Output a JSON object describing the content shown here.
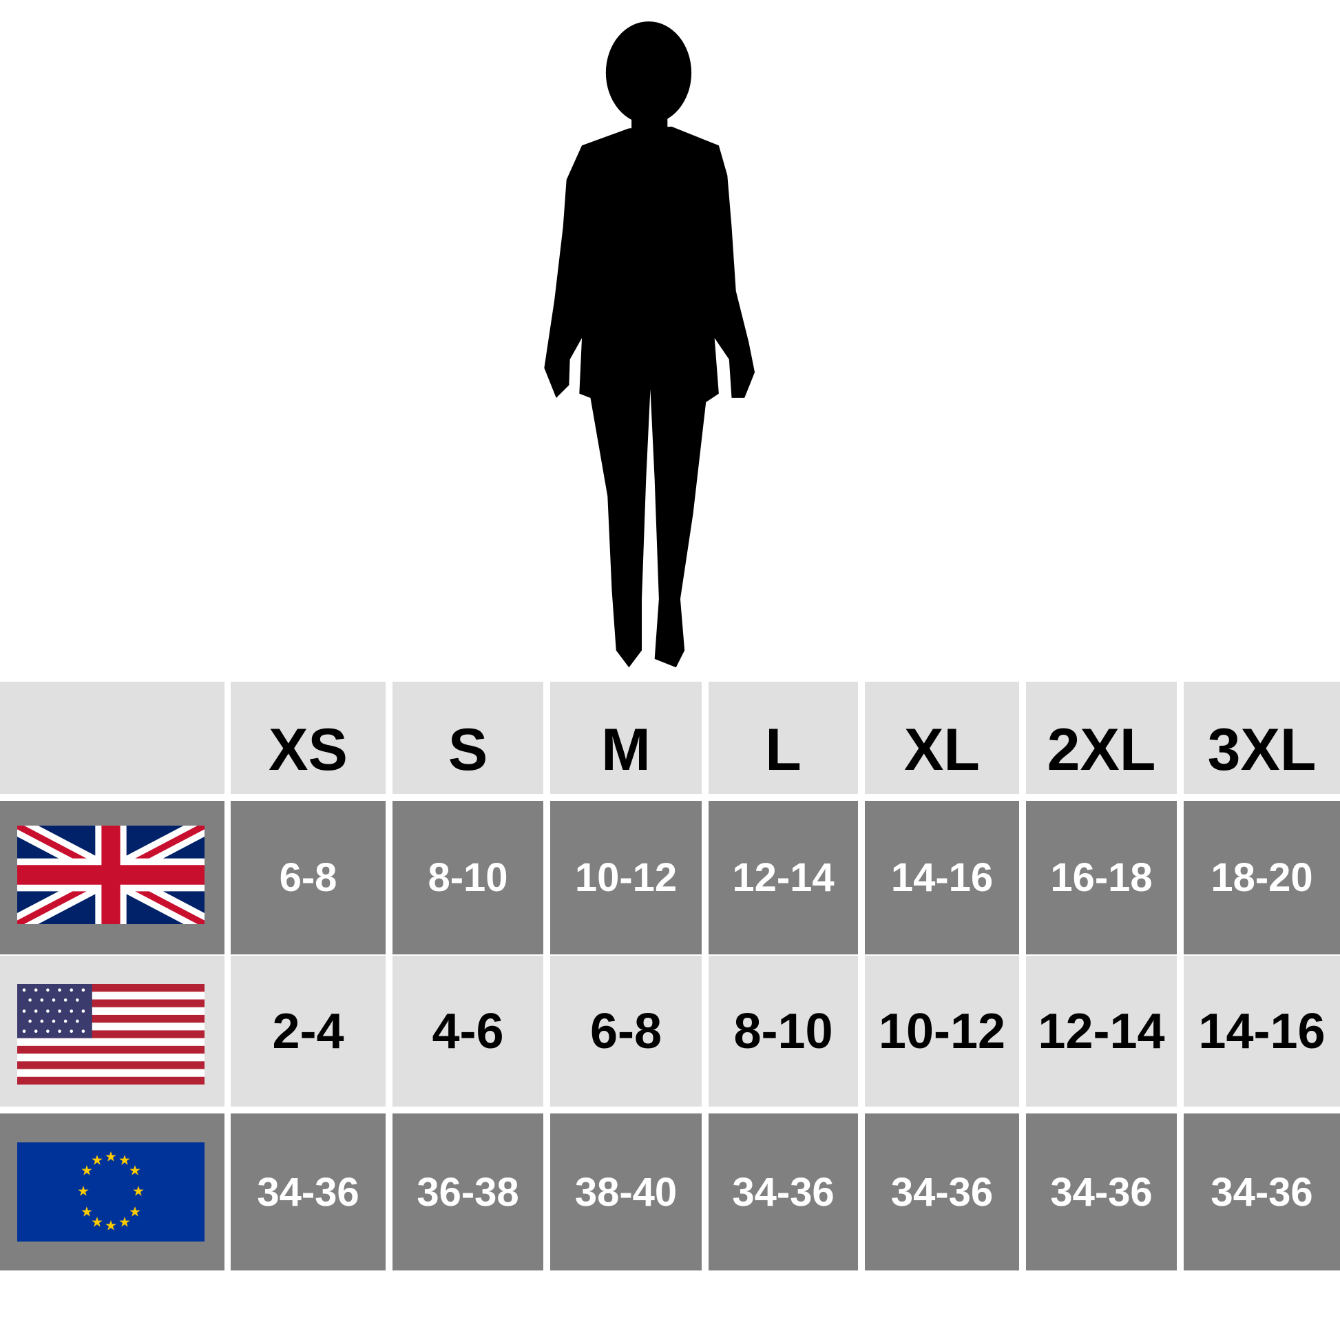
{
  "table": {
    "header": [
      "XS",
      "S",
      "M",
      "L",
      "XL",
      "2XL",
      "3XL"
    ],
    "rows": [
      [
        "6-8",
        "8-10",
        "10-12",
        "12-14",
        "14-16",
        "16-18",
        "18-20"
      ],
      [
        "2-4",
        "4-6",
        "6-8",
        "8-10",
        "10-12",
        "12-14",
        "14-16"
      ],
      [
        "34-36",
        "36-38",
        "38-40",
        "34-36",
        "34-36",
        "34-36",
        "34-36"
      ]
    ]
  }
}
